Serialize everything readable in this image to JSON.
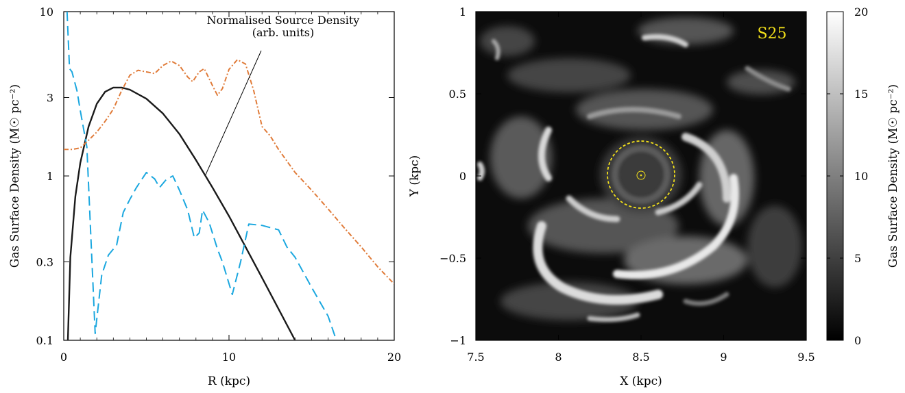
{
  "colors": {
    "source_density": "#1a1a1a",
    "dashed_series": "#1aa7df",
    "dashdot_series": "#e07b39",
    "label_accent": "#f2e01a"
  },
  "chart_data": [
    {
      "type": "line",
      "xlabel": "R (kpc)",
      "ylabel": "Gas Surface Density (M☉ pc⁻²)",
      "xlim": [
        0,
        20
      ],
      "ylim": [
        0.1,
        10
      ],
      "yscale": "log",
      "x_ticks": [
        "0",
        "10",
        "20"
      ],
      "y_ticks": [
        "0.1",
        "0.3",
        "1",
        "3",
        "10"
      ],
      "grid": false,
      "annotation": [
        "Normalised Source Density",
        "(arb. units)"
      ],
      "series": [
        {
          "style": "solid",
          "color": "#1a1a1a",
          "x": [
            0.25,
            0.4,
            0.7,
            1.0,
            1.5,
            2.0,
            2.5,
            3.0,
            3.5,
            4.0,
            5.0,
            6.0,
            7.0,
            8.0,
            9.0,
            10.0,
            11.0,
            12.0,
            13.0,
            14.0
          ],
          "y": [
            0.1,
            0.32,
            0.75,
            1.2,
            2.0,
            2.75,
            3.25,
            3.45,
            3.45,
            3.35,
            2.95,
            2.4,
            1.8,
            1.25,
            0.85,
            0.57,
            0.37,
            0.24,
            0.155,
            0.1
          ]
        },
        {
          "style": "dashed",
          "color": "#1aa7df",
          "x": [
            0.2,
            0.35,
            0.5,
            0.8,
            1.0,
            1.4,
            1.9,
            2.3,
            2.7,
            3.2,
            3.6,
            4.0,
            4.4,
            5.0,
            5.5,
            5.8,
            6.2,
            6.6,
            7.0,
            7.5,
            7.9,
            8.2,
            8.4,
            8.8,
            9.3,
            9.6,
            10.2,
            10.7,
            11.2,
            12.0,
            13.0,
            13.5,
            14.0,
            15.0,
            16.0,
            16.5
          ],
          "y": [
            10.0,
            4.5,
            4.3,
            3.3,
            2.5,
            1.5,
            0.11,
            0.25,
            0.33,
            0.38,
            0.6,
            0.72,
            0.85,
            1.05,
            0.96,
            0.85,
            0.95,
            1.0,
            0.82,
            0.62,
            0.42,
            0.45,
            0.62,
            0.52,
            0.36,
            0.3,
            0.19,
            0.3,
            0.51,
            0.5,
            0.47,
            0.37,
            0.32,
            0.21,
            0.14,
            0.1
          ]
        },
        {
          "style": "dashdot",
          "color": "#e07b39",
          "x": [
            0.0,
            0.5,
            1.0,
            1.5,
            2.0,
            2.5,
            3.0,
            3.5,
            4.0,
            4.5,
            5.0,
            5.5,
            6.0,
            6.5,
            7.0,
            7.5,
            7.8,
            8.2,
            8.5,
            9.0,
            9.3,
            9.6,
            10.0,
            10.5,
            11.0,
            11.5,
            12.0,
            12.5,
            13.0,
            14.0,
            15.0,
            16.0,
            17.0,
            18.0,
            19.0,
            20.0
          ],
          "y": [
            1.45,
            1.45,
            1.48,
            1.65,
            1.85,
            2.15,
            2.55,
            3.3,
            4.1,
            4.4,
            4.3,
            4.2,
            4.7,
            5.0,
            4.7,
            4.0,
            3.75,
            4.3,
            4.5,
            3.55,
            3.1,
            3.4,
            4.45,
            5.1,
            4.8,
            3.3,
            2.0,
            1.75,
            1.45,
            1.05,
            0.82,
            0.63,
            0.48,
            0.37,
            0.28,
            0.22
          ]
        }
      ]
    },
    {
      "type": "heatmap",
      "label": "S25",
      "xlabel": "X (kpc)",
      "ylabel": "Y (kpc)",
      "xlim": [
        7.5,
        9.5
      ],
      "ylim": [
        -1,
        1
      ],
      "x_ticks": [
        "7.5",
        "8",
        "8.5",
        "9",
        "9.5"
      ],
      "y_ticks": [
        "−1",
        "−0.5",
        "0",
        "0.5",
        "1"
      ],
      "colormap": "greyscale",
      "colorbar": {
        "label": "Gas Surface Density (M☉ pc⁻²)",
        "range": [
          0,
          20
        ],
        "ticks": [
          "0",
          "5",
          "10",
          "15",
          "20"
        ]
      },
      "marker_center": [
        8.5,
        0
      ],
      "marker_ring_radius_kpc": 0.2
    }
  ]
}
